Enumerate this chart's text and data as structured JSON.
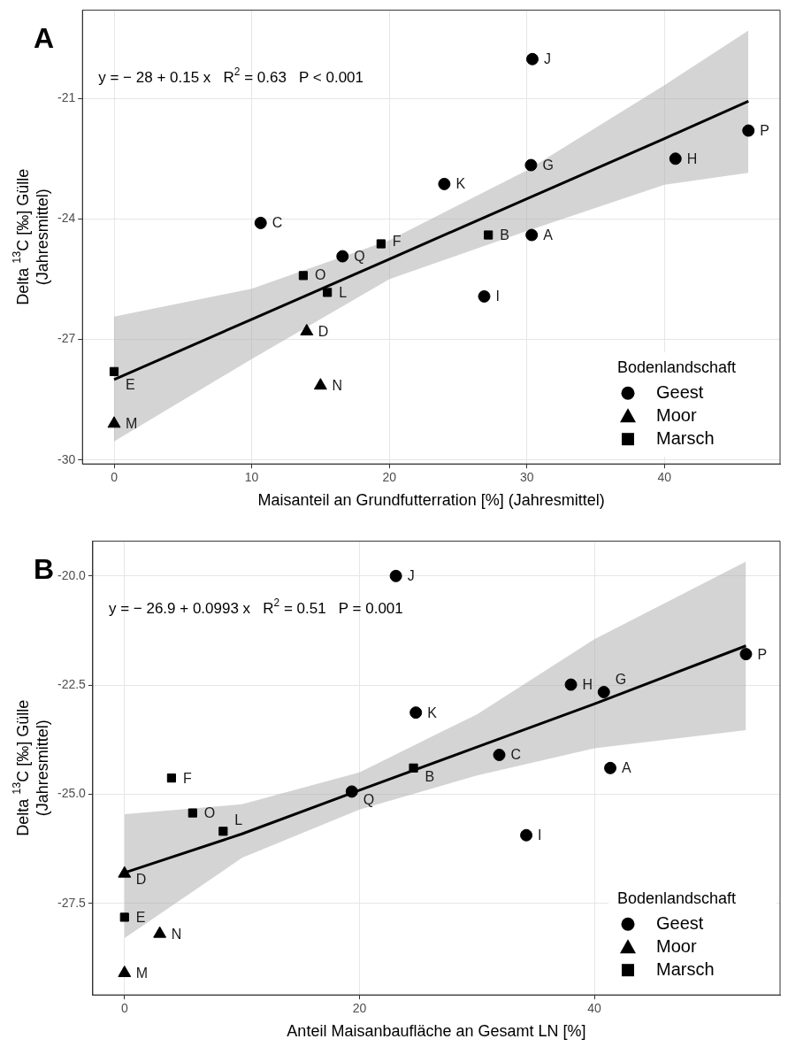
{
  "chart_data": [
    {
      "type": "scatter",
      "title": "A",
      "xlabel": "Maisanteil an Grundfutterration [%] (Jahresmittel)",
      "ylabel": "Delta $^{13}$C [‰] Gülle\n(Jahresmittel)",
      "legend_title": "Bodenlandschaft",
      "legend": "bottom right",
      "grid": true,
      "xlim": [
        -2.3,
        48.4
      ],
      "xticks": [
        0,
        10,
        20,
        30,
        40
      ],
      "ylim": [
        -30.1,
        -18.8
      ],
      "yticks": [
        -30,
        -27,
        -24,
        -21
      ],
      "series": [
        {
          "name": "Geest",
          "marker": "circle",
          "color": "#000000",
          "x": [
            30.4,
            46.1,
            40.8,
            30.3,
            24.0,
            10.65,
            30.35,
            16.6,
            26.9
          ],
          "values": [
            -20.02,
            -21.8,
            -22.5,
            -22.66,
            -23.13,
            -24.1,
            -24.4,
            -24.93,
            -25.93
          ]
        },
        {
          "name": "Moor",
          "marker": "triangle",
          "color": "#000000",
          "x": [
            14.0,
            15.0,
            0
          ],
          "values": [
            -26.8,
            -28.15,
            -29.1
          ]
        },
        {
          "name": "Marsch",
          "marker": "square",
          "color": "#000000",
          "x": [
            27.2,
            19.4,
            13.75,
            15.5,
            0
          ],
          "values": [
            -24.4,
            -24.62,
            -25.41,
            -25.83,
            -27.8
          ]
        },
        {
          "type": "line",
          "marker": "none",
          "color": "#000000",
          "x": [
            0,
            10,
            20,
            30,
            40,
            46.1
          ],
          "values": [
            -28,
            -26.5,
            -25,
            -23.5,
            -22,
            -21.07
          ],
          "lower": [
            -29.54,
            -27.49,
            -25.5,
            -24.3,
            -23.15,
            -22.85
          ],
          "upper": [
            -26.43,
            -25.74,
            -24.53,
            -22.79,
            -20.67,
            -19.31
          ]
        }
      ],
      "annotations": [
        "y = − 28 + 0.15 x   R$^{2}$ = 0.63   P < 0.001",
        {
          "text": "J",
          "x": 30.4,
          "y": -20.02
        },
        {
          "text": "P",
          "x": 46.1,
          "y": -21.8
        },
        {
          "text": "H",
          "x": 40.8,
          "y": -22.5
        },
        {
          "text": "G",
          "x": 30.3,
          "y": -22.66
        },
        {
          "text": "K",
          "x": 24.0,
          "y": -23.13
        },
        {
          "text": "C",
          "x": 10.65,
          "y": -24.1
        },
        {
          "text": "A",
          "x": 30.35,
          "y": -24.4
        },
        {
          "text": "Q",
          "x": 16.6,
          "y": -24.93
        },
        {
          "text": "I",
          "x": 26.9,
          "y": -25.93
        },
        {
          "text": "D",
          "x": 14.0,
          "y": -26.8
        },
        {
          "text": "N",
          "x": 15.0,
          "y": -28.15
        },
        {
          "text": "M",
          "x": 0,
          "y": -29.1
        },
        {
          "text": "B",
          "x": 27.2,
          "y": -24.4
        },
        {
          "text": "F",
          "x": 19.4,
          "y": -24.62
        },
        {
          "text": "O",
          "x": 13.75,
          "y": -25.41
        },
        {
          "text": "L",
          "x": 15.5,
          "y": -25.83
        },
        {
          "text": "E",
          "x": 0,
          "y": -27.8
        }
      ]
    },
    {
      "type": "scatter",
      "title": "B",
      "xlabel": "Anteil Maisanbaufläche an Gesamt LN [%]",
      "ylabel": "Delta $^{13}$C [‰] Gülle\n(Jahresmittel)",
      "legend_title": "Bodenlandschaft",
      "legend": "bottom right",
      "grid": true,
      "xlim": [
        -2.7,
        55.8
      ],
      "xticks": [
        0,
        20,
        40
      ],
      "ylim": [
        -29.6,
        -19.2
      ],
      "yticks": [
        {
          "value": -27.5,
          "label": "-27.5"
        },
        {
          "value": -25,
          "label": "-25.0"
        },
        {
          "value": -22.5,
          "label": "-22.5"
        },
        {
          "value": -20,
          "label": "-20.0"
        }
      ],
      "series": [
        {
          "name": "Geest",
          "marker": "circle",
          "color": "#000000",
          "x": [
            23.1,
            52.9,
            38.0,
            40.8,
            24.8,
            31.9,
            41.35,
            19.35,
            34.2
          ],
          "values": [
            -20.0,
            -21.79,
            -22.49,
            -22.66,
            -23.13,
            -24.1,
            -24.4,
            -24.94,
            -25.94
          ]
        },
        {
          "name": "Moor",
          "marker": "triangle",
          "color": "#000000",
          "x": [
            0,
            3.0,
            0
          ],
          "values": [
            -26.82,
            -28.2,
            -29.1
          ]
        },
        {
          "name": "Marsch",
          "marker": "square",
          "color": "#000000",
          "x": [
            24.6,
            4.0,
            5.8,
            8.4,
            0
          ],
          "values": [
            -24.4,
            -24.63,
            -25.43,
            -25.85,
            -27.82
          ]
        },
        {
          "type": "line",
          "marker": "none",
          "color": "#000000",
          "x": [
            0,
            10,
            20,
            30,
            40,
            52.9
          ],
          "values": [
            -26.8,
            -25.91,
            -24.91,
            -23.92,
            -22.93,
            -21.6
          ],
          "lower": [
            -28.3,
            -26.46,
            -25.35,
            -24.57,
            -23.95,
            -23.53
          ],
          "upper": [
            -25.46,
            -25.23,
            -24.5,
            -23.17,
            -21.45,
            -19.67
          ]
        }
      ],
      "annotations": [
        "y = − 26.9 + 0.0993 x   R$^{2}$ = 0.51   P = 0.001",
        {
          "text": "J",
          "x": 23.1,
          "y": -20.0
        },
        {
          "text": "P",
          "x": 52.9,
          "y": -21.79
        },
        {
          "text": "H",
          "x": 38.0,
          "y": -22.49
        },
        {
          "text": "G",
          "x": 40.8,
          "y": -22.66
        },
        {
          "text": "K",
          "x": 24.8,
          "y": -23.13
        },
        {
          "text": "C",
          "x": 31.9,
          "y": -24.1
        },
        {
          "text": "A",
          "x": 41.35,
          "y": -24.4
        },
        {
          "text": "Q",
          "x": 19.35,
          "y": -24.94
        },
        {
          "text": "I",
          "x": 34.2,
          "y": -25.94
        },
        {
          "text": "D",
          "x": 0,
          "y": -26.82
        },
        {
          "text": "N",
          "x": 3.0,
          "y": -28.2
        },
        {
          "text": "M",
          "x": 0,
          "y": -29.1
        },
        {
          "text": "B",
          "x": 24.6,
          "y": -24.4
        },
        {
          "text": "F",
          "x": 4.0,
          "y": -24.63
        },
        {
          "text": "O",
          "x": 5.8,
          "y": -25.43
        },
        {
          "text": "L",
          "x": 8.4,
          "y": -25.85
        },
        {
          "text": "E",
          "x": 0,
          "y": -27.82
        }
      ]
    }
  ]
}
